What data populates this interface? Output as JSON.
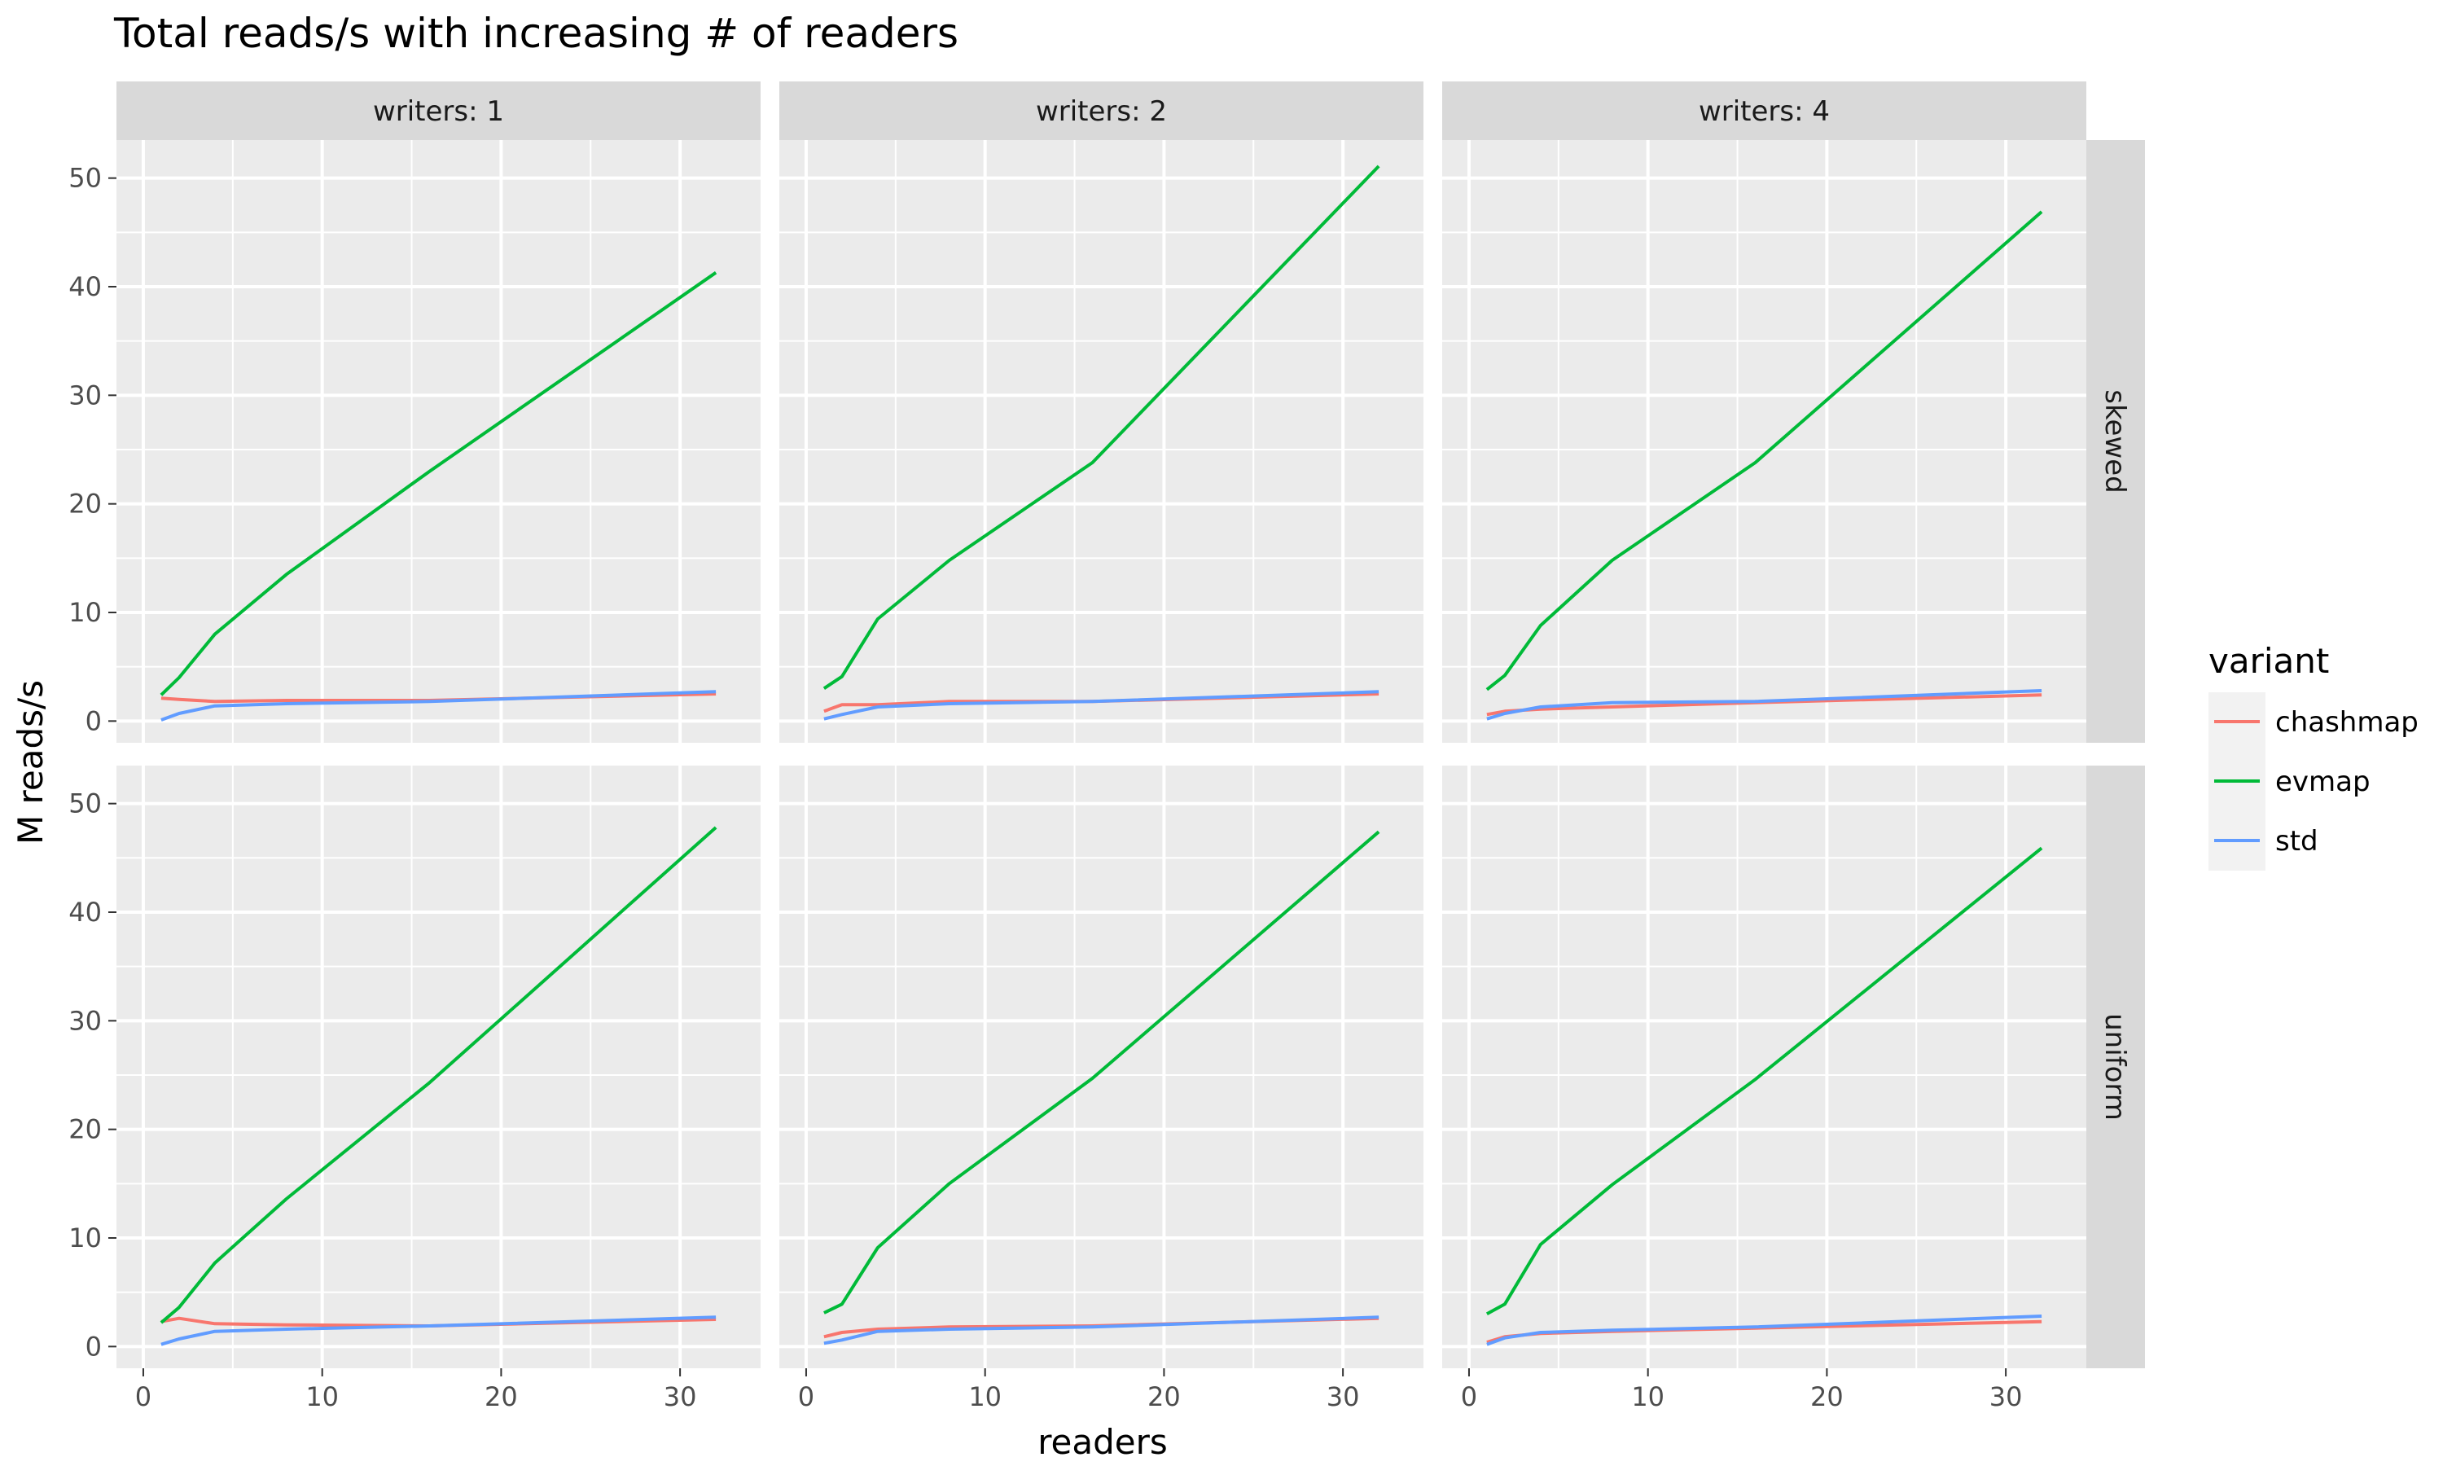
{
  "chart_data": {
    "type": "line",
    "title": "Total reads/s with increasing # of readers",
    "xlabel": "readers",
    "ylabel": "M reads/s",
    "xlim": [
      -1.5,
      34.5
    ],
    "ylim": [
      -2.0,
      53.5
    ],
    "x_ticks": [
      0,
      10,
      20,
      30
    ],
    "y_ticks": [
      0,
      10,
      20,
      30,
      40,
      50
    ],
    "grid": true,
    "facet_columns": [
      "writers: 1",
      "writers: 2",
      "writers: 4"
    ],
    "facet_rows": [
      "skewed",
      "uniform"
    ],
    "legend": {
      "title": "variant",
      "position": "right",
      "entries": [
        "chashmap",
        "evmap",
        "std"
      ]
    },
    "colors": {
      "chashmap": "#f8766d",
      "evmap": "#00ba38",
      "std": "#619cff"
    },
    "x": [
      1,
      2,
      4,
      8,
      16,
      32
    ],
    "panels": [
      {
        "column": "writers: 1",
        "row": "skewed",
        "series": [
          {
            "name": "chashmap",
            "values": [
              2.1,
              2.0,
              1.8,
              1.9,
              1.9,
              2.5
            ]
          },
          {
            "name": "evmap",
            "values": [
              2.4,
              4.0,
              8.0,
              13.5,
              23.0,
              41.3
            ]
          },
          {
            "name": "std",
            "values": [
              0.1,
              0.7,
              1.4,
              1.6,
              1.8,
              2.7
            ]
          }
        ]
      },
      {
        "column": "writers: 2",
        "row": "skewed",
        "series": [
          {
            "name": "chashmap",
            "values": [
              0.9,
              1.5,
              1.5,
              1.8,
              1.8,
              2.5
            ]
          },
          {
            "name": "evmap",
            "values": [
              3.0,
              4.1,
              9.4,
              14.8,
              23.8,
              51.1
            ]
          },
          {
            "name": "std",
            "values": [
              0.2,
              0.6,
              1.3,
              1.6,
              1.8,
              2.7
            ]
          }
        ]
      },
      {
        "column": "writers: 4",
        "row": "skewed",
        "series": [
          {
            "name": "chashmap",
            "values": [
              0.6,
              0.9,
              1.1,
              1.3,
              1.7,
              2.4
            ]
          },
          {
            "name": "evmap",
            "values": [
              2.9,
              4.2,
              8.8,
              14.8,
              23.8,
              46.9
            ]
          },
          {
            "name": "std",
            "values": [
              0.2,
              0.7,
              1.3,
              1.7,
              1.8,
              2.8
            ]
          }
        ]
      },
      {
        "column": "writers: 1",
        "row": "uniform",
        "series": [
          {
            "name": "chashmap",
            "values": [
              2.3,
              2.6,
              2.1,
              2.0,
              1.9,
              2.5
            ]
          },
          {
            "name": "evmap",
            "values": [
              2.2,
              3.6,
              7.7,
              13.6,
              24.3,
              47.8
            ]
          },
          {
            "name": "std",
            "values": [
              0.2,
              0.7,
              1.4,
              1.6,
              1.9,
              2.7
            ]
          }
        ]
      },
      {
        "column": "writers: 2",
        "row": "uniform",
        "series": [
          {
            "name": "chashmap",
            "values": [
              0.9,
              1.3,
              1.6,
              1.8,
              1.9,
              2.6
            ]
          },
          {
            "name": "evmap",
            "values": [
              3.1,
              3.9,
              9.1,
              15.0,
              24.7,
              47.4
            ]
          },
          {
            "name": "std",
            "values": [
              0.3,
              0.6,
              1.4,
              1.6,
              1.8,
              2.7
            ]
          }
        ]
      },
      {
        "column": "writers: 4",
        "row": "uniform",
        "series": [
          {
            "name": "chashmap",
            "values": [
              0.4,
              0.9,
              1.2,
              1.4,
              1.7,
              2.3
            ]
          },
          {
            "name": "evmap",
            "values": [
              3.0,
              3.9,
              9.4,
              14.9,
              24.6,
              45.9
            ]
          },
          {
            "name": "std",
            "values": [
              0.2,
              0.8,
              1.3,
              1.5,
              1.8,
              2.8
            ]
          }
        ]
      }
    ]
  }
}
